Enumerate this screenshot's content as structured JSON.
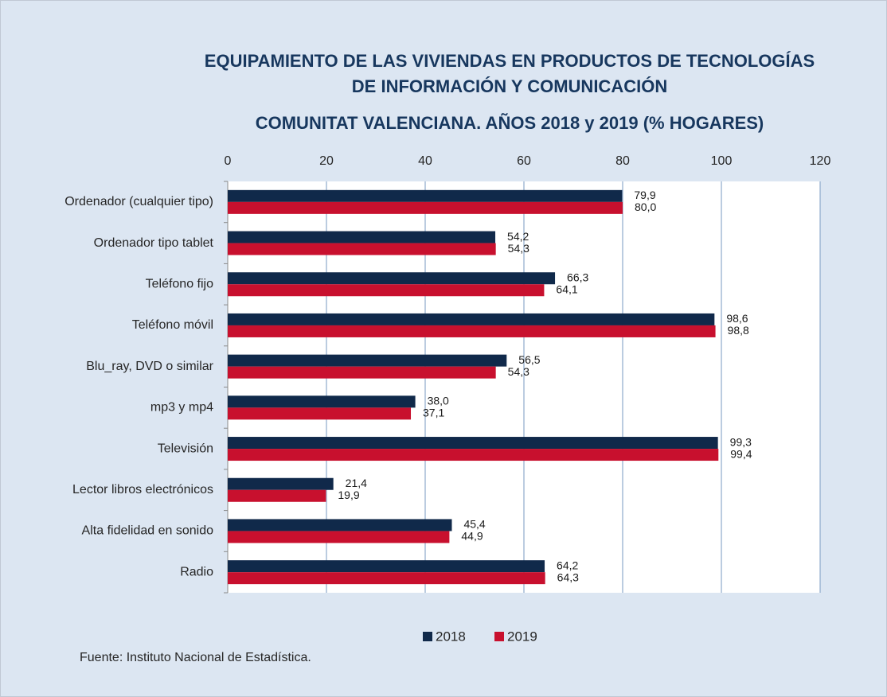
{
  "chart_data": {
    "type": "bar",
    "orientation": "horizontal",
    "title": [
      "EQUIPAMIENTO DE LAS VIVIENDAS EN PRODUCTOS DE TECNOLOGÍAS",
      "DE INFORMACIÓN Y COMUNICACIÓN",
      "COMUNITAT VALENCIANA. AÑOS 2018 y 2019 (% HOGARES)"
    ],
    "categories": [
      "Ordenador (cualquier tipo)",
      "Ordenador tipo tablet",
      "Teléfono fijo",
      "Teléfono móvil",
      "Blu_ray, DVD o similar",
      "mp3 y mp4",
      "Televisión",
      "Lector libros electrónicos",
      "Alta fidelidad en sonido",
      "Radio"
    ],
    "series": [
      {
        "name": "2018",
        "color": "#10294a",
        "values": [
          79.9,
          54.2,
          66.3,
          98.6,
          56.5,
          38.0,
          99.3,
          21.4,
          45.4,
          64.2
        ],
        "value_labels": [
          "79,9",
          "54,2",
          "66,3",
          "98,6",
          "56,5",
          "38,0",
          "99,3",
          "21,4",
          "45,4",
          "64,2"
        ]
      },
      {
        "name": "2019",
        "color": "#c8102e",
        "values": [
          80.0,
          54.3,
          64.1,
          98.8,
          54.3,
          37.1,
          99.4,
          19.9,
          44.9,
          64.3
        ],
        "value_labels": [
          "80,0",
          "54,3",
          "64,1",
          "98,8",
          "54,3",
          "37,1",
          "99,4",
          "19,9",
          "44,9",
          "64,3"
        ]
      }
    ],
    "xlim": [
      0,
      120
    ],
    "xticks": [
      0,
      20,
      40,
      60,
      80,
      100,
      120
    ],
    "grid": true,
    "source": "Fuente: Instituto Nacional de Estadística."
  }
}
